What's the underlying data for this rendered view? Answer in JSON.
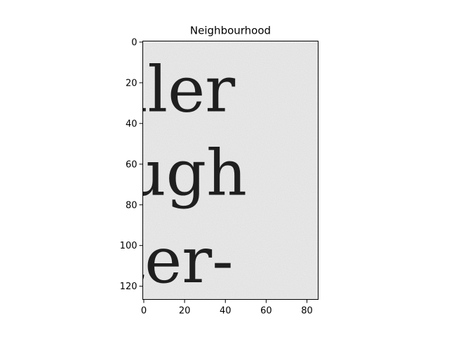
{
  "chart_data": {
    "type": "heatmap",
    "title": "Neighbourhood",
    "xlabel": "",
    "ylabel": "",
    "xlim": [
      -0.5,
      85.5
    ],
    "ylim": [
      126.5,
      -0.5
    ],
    "x_ticks": [
      0,
      20,
      40,
      60,
      80
    ],
    "x_tick_labels": [
      "0",
      "20",
      "40",
      "60",
      "80"
    ],
    "y_ticks": [
      0,
      20,
      40,
      60,
      80,
      100,
      120
    ],
    "y_tick_labels": [
      "0",
      "20",
      "40",
      "60",
      "80",
      "100",
      "120"
    ],
    "grid": false,
    "colormap": "gray",
    "image_text": [
      "ller",
      "ugh",
      "ter-"
    ],
    "background_color": "#ededed",
    "ink_color": "#1f1f1f"
  }
}
